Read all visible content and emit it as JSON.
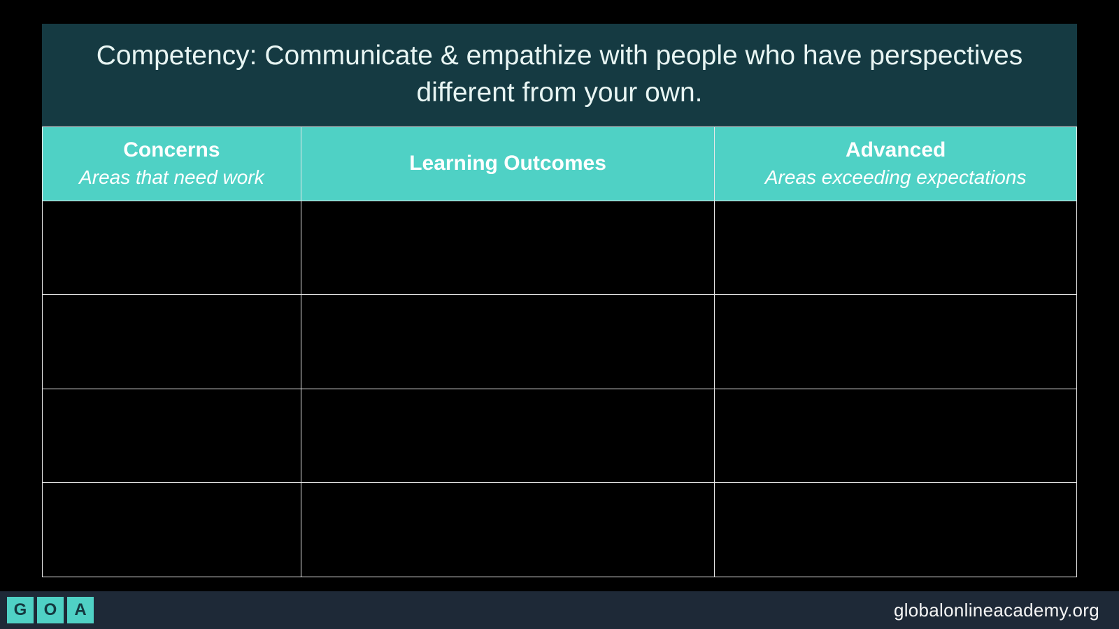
{
  "colors": {
    "page_bg": "#000000",
    "title_bg": "#153a42",
    "title_text": "#e8f5f3",
    "col_header_bg": "#4fd1c5",
    "col_header_text": "#ffffff",
    "cell_border": "#e8e8e8",
    "cell_bg": "#000000",
    "footer_bg": "#1e2937",
    "footer_text": "#f5f5f5",
    "logo_bg": "#4fd1c5",
    "logo_text": "#143940"
  },
  "title": "Competency: Communicate & empathize with people who have perspectives different from your own.",
  "columns": [
    {
      "title": "Concerns",
      "subtitle": "Areas that need work",
      "width": "25%"
    },
    {
      "title": "Learning Outcomes",
      "subtitle": "",
      "width": "40%"
    },
    {
      "title": "Advanced",
      "subtitle": "Areas exceeding expectations",
      "width": "35%"
    }
  ],
  "rows": [
    [
      "",
      "",
      ""
    ],
    [
      "",
      "",
      ""
    ],
    [
      "",
      "",
      ""
    ],
    [
      "",
      "",
      ""
    ]
  ],
  "footer": {
    "logo_letters": [
      "G",
      "O",
      "A"
    ],
    "url": "globalonlineacademy.org"
  }
}
